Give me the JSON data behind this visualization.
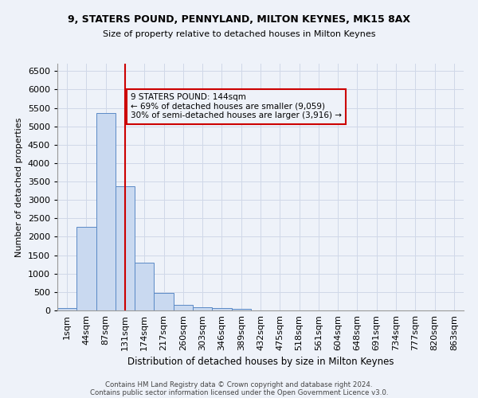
{
  "title1": "9, STATERS POUND, PENNYLAND, MILTON KEYNES, MK15 8AX",
  "title2": "Size of property relative to detached houses in Milton Keynes",
  "xlabel": "Distribution of detached houses by size in Milton Keynes",
  "ylabel": "Number of detached properties",
  "footer1": "Contains HM Land Registry data © Crown copyright and database right 2024.",
  "footer2": "Contains public sector information licensed under the Open Government Licence v3.0.",
  "bar_color": "#c9d9f0",
  "bar_edge_color": "#5a8ac6",
  "grid_color": "#d0d8e8",
  "categories": [
    "1sqm",
    "44sqm",
    "87sqm",
    "131sqm",
    "174sqm",
    "217sqm",
    "260sqm",
    "303sqm",
    "346sqm",
    "389sqm",
    "432sqm",
    "475sqm",
    "518sqm",
    "561sqm",
    "604sqm",
    "648sqm",
    "691sqm",
    "734sqm",
    "777sqm",
    "820sqm",
    "863sqm"
  ],
  "values": [
    75,
    2270,
    5350,
    3380,
    1290,
    480,
    160,
    90,
    60,
    40,
    0,
    0,
    0,
    0,
    0,
    0,
    0,
    0,
    0,
    0,
    0
  ],
  "ylim": [
    0,
    6700
  ],
  "yticks": [
    0,
    500,
    1000,
    1500,
    2000,
    2500,
    3000,
    3500,
    4000,
    4500,
    5000,
    5500,
    6000,
    6500
  ],
  "annotation_text": "9 STATERS POUND: 144sqm\n← 69% of detached houses are smaller (9,059)\n30% of semi-detached houses are larger (3,916) →",
  "vline_x": 3,
  "vline_color": "#cc0000",
  "annotation_box_color": "#cc0000",
  "background_color": "#eef2f9"
}
